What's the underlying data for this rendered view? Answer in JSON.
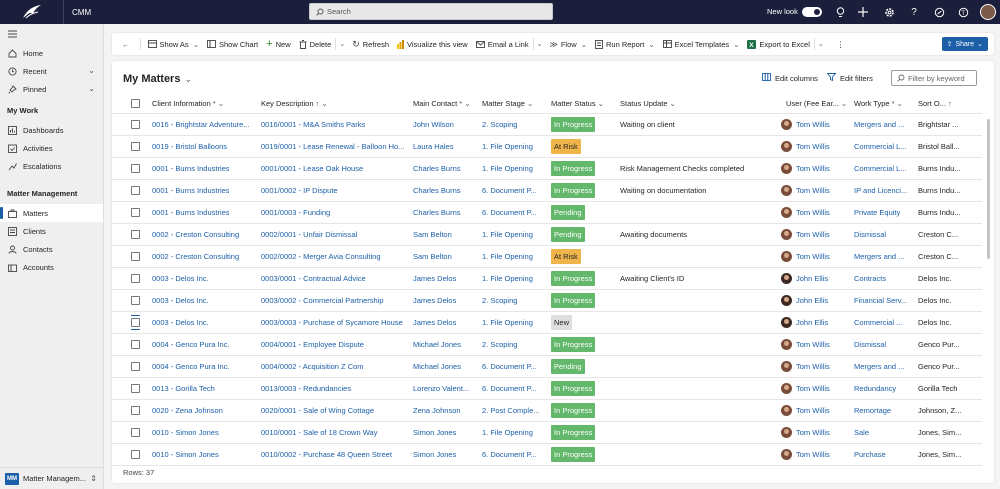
{
  "app": {
    "name": "CMM",
    "search_placeholder": "Search",
    "new_look": "New look"
  },
  "sidebar": {
    "home": "Home",
    "recent": "Recent",
    "pinned": "Pinned",
    "section_mywork": "My Work",
    "mywork": [
      "Dashboards",
      "Activities",
      "Escalations"
    ],
    "section_matter": "Matter Management",
    "matter": [
      "Matters",
      "Clients",
      "Contacts",
      "Accounts"
    ],
    "area_badge": "MM",
    "area_label": "Matter Managem..."
  },
  "commands": {
    "show_as": "Show As",
    "show_chart": "Show Chart",
    "new": "New",
    "delete": "Delete",
    "refresh": "Refresh",
    "visualize": "Visualize this view",
    "email_link": "Email a Link",
    "flow": "Flow",
    "run_report": "Run Report",
    "excel_templates": "Excel Templates",
    "export_excel": "Export to Excel",
    "share": "Share"
  },
  "view": {
    "title": "My Matters",
    "edit_columns": "Edit columns",
    "edit_filters": "Edit filters",
    "filter_placeholder": "Filter by keyword",
    "row_count": "Rows: 37"
  },
  "columns": [
    "Client Information",
    "Key Description",
    "Main Contact",
    "Matter Stage",
    "Matter Status",
    "Status Update",
    "User (Fee Ear...",
    "Work Type",
    "Sort O..."
  ],
  "status_colors": {
    "In Progress": "#63b86b",
    "At Risk": "#f0b54a",
    "Pending": "#63b86b",
    "New": "#dedede"
  },
  "rows": [
    {
      "client": "0016 - Brightstar Adventure...",
      "key": "0016/0001 - M&A Smiths Parks",
      "contact": "John Wilson",
      "stage": "2. Scoping",
      "status": "In Progress",
      "update": "Waiting on client",
      "user": "Tom Willis",
      "work": "Mergers and ...",
      "sort": "Brightstar ..."
    },
    {
      "client": "0019 - Bristol Balloons",
      "key": "0019/0001 - Lease Renewal - Balloon Ho...",
      "contact": "Laura Hales",
      "stage": "1. File Opening",
      "status": "At Risk",
      "update": "",
      "user": "Tom Willis",
      "work": "Commercial L...",
      "sort": "Bristol Ball..."
    },
    {
      "client": "0001 - Burns Industries",
      "key": "0001/0001 - Lease Oak House",
      "contact": "Charles Burns",
      "stage": "1. File Opening",
      "status": "In Progress",
      "update": "Risk Management Checks completed",
      "user": "Tom Willis",
      "work": "Commercial L...",
      "sort": "Burns Indu..."
    },
    {
      "client": "0001 - Burns Industries",
      "key": "0001/0002 - IP Dispute",
      "contact": "Charles Burns",
      "stage": "6. Document P...",
      "status": "In Progress",
      "update": "Waiting on documentation",
      "user": "Tom Willis",
      "work": "IP and Licenci...",
      "sort": "Burns Indu..."
    },
    {
      "client": "0001 - Burns Industries",
      "key": "0001/0003 - Funding",
      "contact": "Charles Burns",
      "stage": "6. Document P...",
      "status": "Pending",
      "update": "",
      "user": "Tom Willis",
      "work": "Private Equity",
      "sort": "Burns Indu..."
    },
    {
      "client": "0002 - Creston Consulting",
      "key": "0002/0001 - Unfair Dismissal",
      "contact": "Sam Belton",
      "stage": "1. File Opening",
      "status": "Pending",
      "update": "Awaiting documents",
      "user": "Tom Willis",
      "work": "Dismissal",
      "sort": "Creston C..."
    },
    {
      "client": "0002 - Creston Consulting",
      "key": "0002/0002 - Merger Avia Consulting",
      "contact": "Sam Belton",
      "stage": "1. File Opening",
      "status": "At Risk",
      "update": "",
      "user": "Tom Willis",
      "work": "Mergers and ...",
      "sort": "Creston C..."
    },
    {
      "client": "0003 - Delos Inc.",
      "key": "0003/0001 - Contractual Advice",
      "contact": "James Delos",
      "stage": "1. File Opening",
      "status": "In Progress",
      "update": "Awaiting Client's ID",
      "user": "John Ellis",
      "work": "Contracts",
      "sort": "Delos Inc."
    },
    {
      "client": "0003 - Delos Inc.",
      "key": "0003/0002 - Commercial Partnership",
      "contact": "James Delos",
      "stage": "2. Scoping",
      "status": "In Progress",
      "update": "",
      "user": "John Ellis",
      "work": "Financial Serv...",
      "sort": "Delos Inc."
    },
    {
      "client": "0003 - Delos Inc.",
      "key": "0003/0003 - Purchase of Sycamore House",
      "contact": "James Delos",
      "stage": "1. File Opening",
      "status": "New",
      "update": "",
      "user": "John Ellis",
      "work": "Commercial ...",
      "sort": "Delos Inc."
    },
    {
      "client": "0004 - Genco Pura Inc.",
      "key": "0004/0001 - Employee Dispute",
      "contact": "Michael Jones",
      "stage": "2. Scoping",
      "status": "In Progress",
      "update": "",
      "user": "Tom Willis",
      "work": "Dismissal",
      "sort": "Genco Pur..."
    },
    {
      "client": "0004 - Genco Pura Inc.",
      "key": "0004/0002 - Acquisition Z Com",
      "contact": "Michael Jones",
      "stage": "6. Document P...",
      "status": "Pending",
      "update": "",
      "user": "Tom Willis",
      "work": "Mergers and ...",
      "sort": "Genco Pur..."
    },
    {
      "client": "0013 - Gorilla Tech",
      "key": "0013/0003 - Redundancies",
      "contact": "Lorenzo Valent...",
      "stage": "6. Document P...",
      "status": "In Progress",
      "update": "",
      "user": "Tom Willis",
      "work": "Redundancy",
      "sort": "Gorilla Tech"
    },
    {
      "client": "0020 - Zena Johnson",
      "key": "0020/0001 - Sale of Wing Cottage",
      "contact": "Zena Johnson",
      "stage": "2. Post Comple...",
      "status": "In Progress",
      "update": "",
      "user": "Tom Willis",
      "work": "Remortage",
      "sort": "Johnson, Z..."
    },
    {
      "client": "0010 - Simon Jones",
      "key": "0010/0001 - Sale of 18 Crown Way",
      "contact": "Simon Jones",
      "stage": "1. File Opening",
      "status": "In Progress",
      "update": "",
      "user": "Tom Willis",
      "work": "Sale",
      "sort": "Jones, Sim..."
    },
    {
      "client": "0010 - Simon Jones",
      "key": "0010/0002 - Purchase 48 Queen Street",
      "contact": "Simon Jones",
      "stage": "6. Document P...",
      "status": "In Progress",
      "update": "",
      "user": "Tom Willis",
      "work": "Purchase",
      "sort": "Jones, Sim..."
    }
  ]
}
